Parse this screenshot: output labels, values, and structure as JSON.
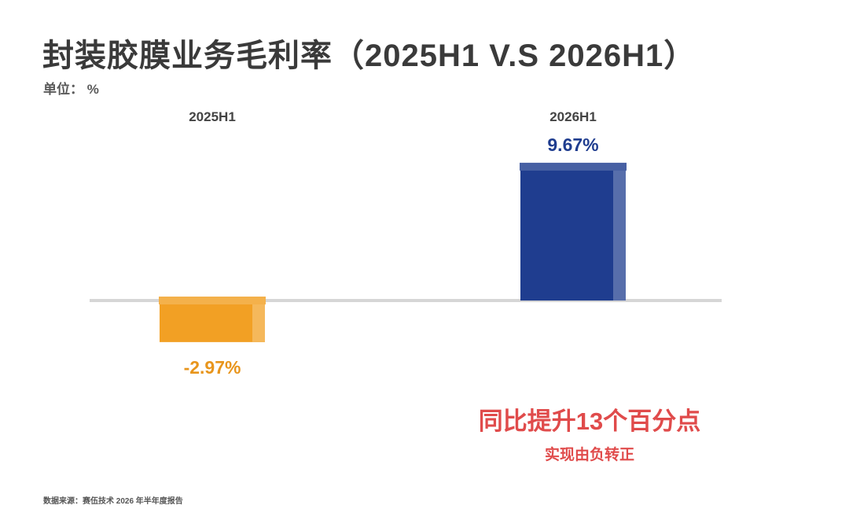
{
  "title": "封装胶膜业务毛利率（2025H1 V.S 2026H1）",
  "unit_label": "单位：  %",
  "annotation": {
    "main": "同比提升13个百分点",
    "sub": "实现由负转正"
  },
  "source": "数据来源：赛伍技术 2026 年半年度报告",
  "chart_data": {
    "type": "bar",
    "categories": [
      "2025H1",
      "2026H1"
    ],
    "values": [
      -2.97,
      9.67
    ],
    "value_labels": [
      "-2.97%",
      "9.67%"
    ],
    "colors": [
      "#f2a024",
      "#1f3d8f"
    ],
    "label_colors": [
      "#e8951c",
      "#1f3d8f"
    ],
    "baseline": 0,
    "grid": false
  }
}
